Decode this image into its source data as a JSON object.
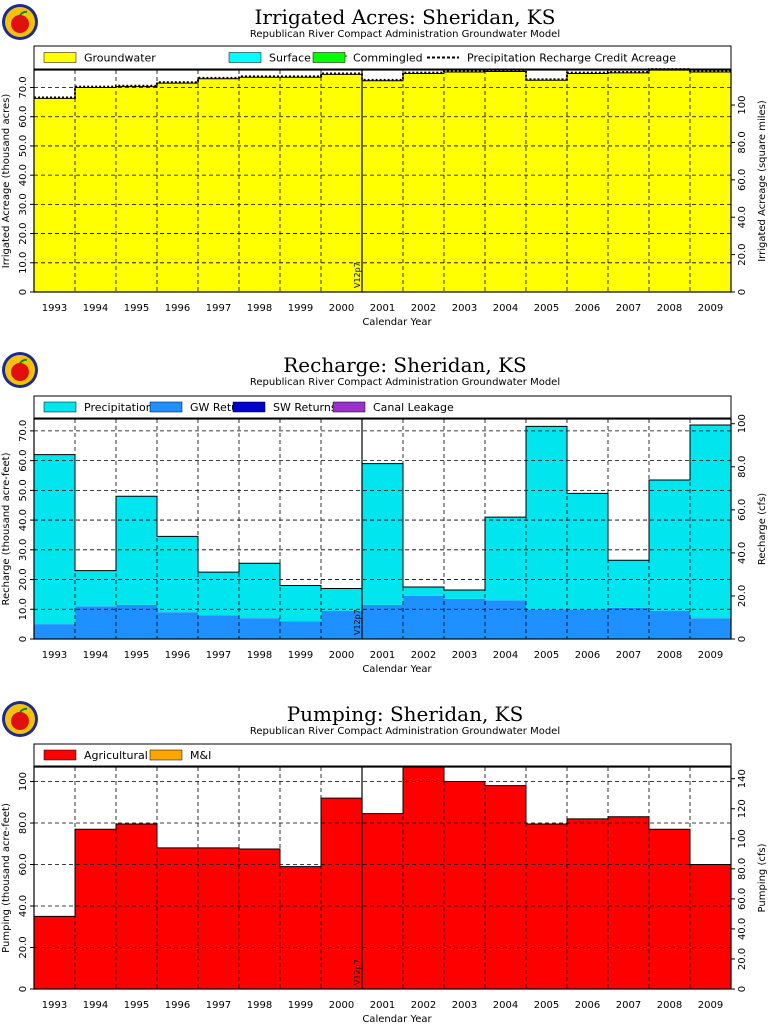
{
  "chart_data": [
    {
      "type": "area",
      "title": "Irrigated  Acres:  Sheridan,  KS",
      "subtitle": "Republican  River  Compact  Administration  Groundwater  Model",
      "xlabel": "Calendar  Year",
      "ylabel": "Irrigated  Acreage  (thousand  acres)",
      "ylabel_right": "Irrigated  Acreage  (square  miles)",
      "categories": [
        "1993",
        "1994",
        "1995",
        "1996",
        "1997",
        "1998",
        "1999",
        "2000",
        "2001",
        "2002",
        "2003",
        "2004",
        "2005",
        "2006",
        "2007",
        "2008",
        "2009"
      ],
      "ylim": [
        0,
        76
      ],
      "yticks": [
        0,
        10,
        20,
        30,
        40,
        50,
        60,
        70
      ],
      "ytick_labels": [
        "0",
        "10.0",
        "20.0",
        "30.0",
        "40.0",
        "50.0",
        "60.0",
        "70.0"
      ],
      "right_axis": {
        "ylim": [
          0,
          118.75
        ],
        "ticks": [
          0,
          20,
          40,
          60,
          80,
          100
        ],
        "tick_labels": [
          "0",
          "20.0",
          "40.0",
          "60.0",
          "80.0",
          "100"
        ]
      },
      "legend_placement": "top",
      "grid": true,
      "series": [
        {
          "name": "Groundwater",
          "color": "#ffff00",
          "values": [
            66.3,
            70.0,
            70.3,
            71.5,
            73.0,
            73.5,
            73.5,
            74.5,
            72.3,
            74.8,
            75.3,
            75.5,
            72.5,
            74.8,
            75.0,
            76.0,
            75.3
          ]
        },
        {
          "name": "Surface Water",
          "color": "#00ffff",
          "values": [
            0,
            0,
            0,
            0,
            0,
            0,
            0,
            0,
            0,
            0,
            0,
            0,
            0,
            0,
            0,
            0,
            0
          ]
        },
        {
          "name": "Commingled",
          "color": "#00ff00",
          "values": [
            0,
            0,
            0,
            0,
            0,
            0,
            0,
            0,
            0,
            0,
            0,
            0,
            0,
            0,
            0,
            0,
            0
          ]
        },
        {
          "name": "Precipitation  Recharge  Credit  Acreage",
          "color": "#000000",
          "style": "dashed",
          "values": [
            66.6,
            70.3,
            70.6,
            71.8,
            73.3,
            73.8,
            73.8,
            74.8,
            72.6,
            75.1,
            75.6,
            75.8,
            72.8,
            75.1,
            75.3,
            76.3,
            75.6
          ]
        }
      ],
      "annotation": "V12p7"
    },
    {
      "type": "area",
      "title": "Recharge:  Sheridan,  KS",
      "subtitle": "Republican  River  Compact  Administration  Groundwater  Model",
      "xlabel": "Calendar  Year",
      "ylabel": "Recharge  (thousand  acre-feet)",
      "ylabel_right": "Recharge  (cfs)",
      "categories": [
        "1993",
        "1994",
        "1995",
        "1996",
        "1997",
        "1998",
        "1999",
        "2000",
        "2001",
        "2002",
        "2003",
        "2004",
        "2005",
        "2006",
        "2007",
        "2008",
        "2009"
      ],
      "ylim": [
        0,
        74
      ],
      "yticks": [
        0,
        10,
        20,
        30,
        40,
        50,
        60,
        70
      ],
      "ytick_labels": [
        "0",
        "10.0",
        "20.0",
        "30.0",
        "40.0",
        "50.0",
        "60.0",
        "70.0"
      ],
      "right_axis": {
        "ylim": [
          0,
          102.2
        ],
        "ticks": [
          0,
          20,
          40,
          60,
          80,
          100
        ],
        "tick_labels": [
          "0",
          "20.0",
          "40.0",
          "60.0",
          "80.0",
          "100"
        ]
      },
      "legend_placement": "top",
      "grid": true,
      "series": [
        {
          "name": "Precipitation",
          "color": "#00e5ee",
          "values": [
            57.0,
            12.0,
            36.5,
            25.5,
            14.5,
            18.5,
            12.0,
            7.5,
            47.5,
            3.0,
            3.0,
            28.0,
            61.5,
            39.0,
            16.0,
            44.0,
            65.0
          ]
        },
        {
          "name": "GW  Returns",
          "color": "#1e90ff",
          "values": [
            5.0,
            11.0,
            11.5,
            9.0,
            8.0,
            7.0,
            6.0,
            9.5,
            11.5,
            14.5,
            13.5,
            13.0,
            10.0,
            10.0,
            10.5,
            9.5,
            7.0
          ]
        },
        {
          "name": "SW  Returns",
          "color": "#0000cd",
          "values": [
            0,
            0,
            0,
            0,
            0,
            0,
            0,
            0,
            0,
            0,
            0,
            0,
            0,
            0,
            0,
            0,
            0
          ]
        },
        {
          "name": "Canal  Leakage",
          "color": "#9932cc",
          "values": [
            0,
            0,
            0,
            0,
            0,
            0,
            0,
            0,
            0,
            0,
            0,
            0,
            0,
            0,
            0,
            0,
            0
          ]
        }
      ],
      "annotation": "V12p7"
    },
    {
      "type": "area",
      "title": "Pumping:  Sheridan,  KS",
      "subtitle": "Republican  River  Compact  Administration  Groundwater  Model",
      "xlabel": "Calendar  Year",
      "ylabel": "Pumping  (thousand  acre-feet)",
      "ylabel_right": "Pumping  (cfs)",
      "categories": [
        "1993",
        "1994",
        "1995",
        "1996",
        "1997",
        "1998",
        "1999",
        "2000",
        "2001",
        "2002",
        "2003",
        "2004",
        "2005",
        "2006",
        "2007",
        "2008",
        "2009"
      ],
      "ylim": [
        0,
        107
      ],
      "yticks": [
        0,
        20,
        40,
        60,
        80,
        100
      ],
      "ytick_labels": [
        "0",
        "20.0",
        "40.0",
        "60.0",
        "80.0",
        "100"
      ],
      "right_axis": {
        "ylim": [
          0,
          147.8
        ],
        "ticks": [
          0,
          20,
          40,
          60,
          80,
          100,
          120,
          140
        ],
        "tick_labels": [
          "0",
          "20.0",
          "40.0",
          "60.0",
          "80.0",
          "100",
          "120",
          "140"
        ]
      },
      "legend_placement": "top",
      "grid": true,
      "series": [
        {
          "name": "Agricultural",
          "color": "#ff0000",
          "values": [
            35.0,
            77.0,
            79.5,
            68.0,
            68.0,
            67.5,
            59.0,
            92.0,
            84.5,
            107.0,
            100.0,
            98.0,
            79.5,
            82.0,
            83.0,
            77.0,
            60.0
          ]
        },
        {
          "name": "M&I",
          "color": "#ffa500",
          "values": [
            0,
            0,
            0,
            0,
            0,
            0,
            0,
            0,
            0,
            0,
            0,
            0,
            0,
            0,
            0,
            0,
            0
          ]
        }
      ],
      "annotation": "V12p7"
    }
  ]
}
